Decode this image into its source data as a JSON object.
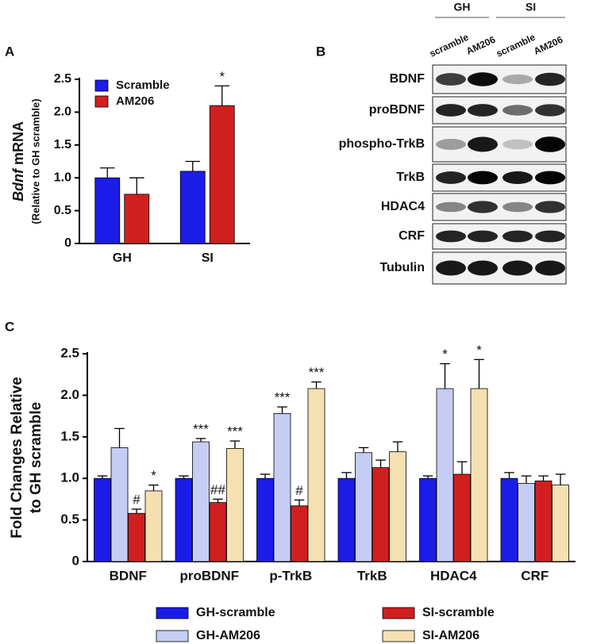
{
  "chart_data": [
    {
      "type": "bar",
      "panel_label": "A",
      "ylabel": {
        "gene": "Bdnf",
        "text": "mRNA"
      },
      "ylabel_sub": "(Relative to GH scramble)",
      "categories": [
        "GH",
        "SI"
      ],
      "series": [
        {
          "name": "Scramble",
          "color": "#1c1ce8",
          "values": [
            1.0,
            1.1
          ],
          "errors": [
            0.15,
            0.15
          ],
          "annotations": [
            null,
            null
          ]
        },
        {
          "name": "AM206",
          "color": "#d01f1f",
          "values": [
            0.75,
            2.1
          ],
          "errors": [
            0.25,
            0.3
          ],
          "annotations": [
            null,
            "*"
          ]
        }
      ],
      "ylim": [
        0,
        2.5
      ],
      "yticks": [
        0,
        0.5,
        {
          "value": 1,
          "label": "1.0"
        },
        1.5,
        {
          "value": 2,
          "label": "2.0"
        },
        2.5
      ],
      "legend": "upper left"
    },
    {
      "type": "bar",
      "panel_label": "C",
      "ylabel_lines": [
        "Fold Changes Relative",
        "to GH scramble"
      ],
      "categories": [
        "BDNF",
        "proBDNF",
        "p-TrkB",
        "TrkB",
        "HDAC4",
        "CRF"
      ],
      "series": [
        {
          "name": "GH-scramble",
          "color": "#1c1ce8",
          "values": [
            1.0,
            1.0,
            1.0,
            1.0,
            1.0,
            1.0
          ],
          "errors": [
            0.03,
            0.03,
            0.05,
            0.07,
            0.03,
            0.07
          ],
          "annotations": [
            null,
            null,
            null,
            null,
            null,
            null
          ]
        },
        {
          "name": "GH-AM206",
          "color": "#c6cdf4",
          "values": [
            1.37,
            1.44,
            1.78,
            1.31,
            2.08,
            0.94
          ],
          "errors": [
            0.23,
            0.04,
            0.08,
            0.06,
            0.3,
            0.09
          ],
          "annotations": [
            null,
            "***",
            "***",
            null,
            "*",
            null
          ]
        },
        {
          "name": "SI-scramble",
          "color": "#d01f1f",
          "values": [
            0.58,
            0.71,
            0.67,
            1.13,
            1.05,
            0.97
          ],
          "errors": [
            0.05,
            0.04,
            0.07,
            0.09,
            0.15,
            0.06
          ],
          "annotations": [
            "#",
            "##",
            "#",
            null,
            null,
            null
          ]
        },
        {
          "name": "SI-AM206",
          "color": "#f5e0b2",
          "values": [
            0.85,
            1.36,
            2.08,
            1.32,
            2.08,
            0.92
          ],
          "errors": [
            0.07,
            0.09,
            0.08,
            0.12,
            0.35,
            0.13
          ],
          "annotations": [
            "*",
            "***",
            "***",
            null,
            "*",
            null
          ]
        }
      ],
      "ylim": [
        0,
        2.5
      ],
      "yticks": [
        0,
        0.5,
        {
          "value": 1,
          "label": "1.0"
        },
        1.5,
        {
          "value": 2,
          "label": "2.0"
        },
        2.5
      ],
      "legend": "below"
    }
  ],
  "blot": {
    "panel_label": "B",
    "groups": [
      "GH",
      "SI"
    ],
    "lanes": [
      "scramble",
      "AM206",
      "scramble",
      "AM206"
    ],
    "rows": [
      "BDNF",
      "proBDNF",
      "phospho-TrkB",
      "TrkB",
      "HDAC4",
      "CRF",
      "Tubulin"
    ]
  }
}
